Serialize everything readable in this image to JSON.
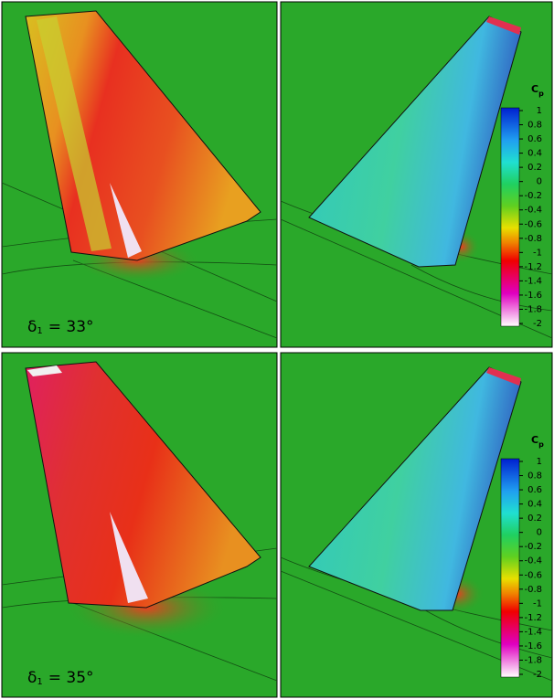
{
  "panels": [
    {
      "label": {
        "symbol": "δ",
        "subscript": "1",
        "text": "= 33°"
      }
    },
    {
      "colorbar": {
        "title": "C",
        "subscript": "p",
        "ticks": [
          "1",
          "0.8",
          "0.6",
          "0.4",
          "0.2",
          "0",
          "-0.2",
          "-0.4",
          "-0.6",
          "-0.8",
          "-1",
          "-1.2",
          "-1.4",
          "-1.6",
          "-1.8",
          "-2"
        ]
      }
    },
    {
      "label": {
        "symbol": "δ",
        "subscript": "1",
        "text": "= 35°"
      }
    },
    {
      "colorbar": {
        "title": "C",
        "subscript": "p",
        "ticks": [
          "1",
          "0.8",
          "0.6",
          "0.4",
          "0.2",
          "0",
          "-0.2",
          "-0.4",
          "-0.6",
          "-0.8",
          "-1",
          "-1.2",
          "-1.4",
          "-1.6",
          "-1.8",
          "-2"
        ]
      }
    }
  ]
}
